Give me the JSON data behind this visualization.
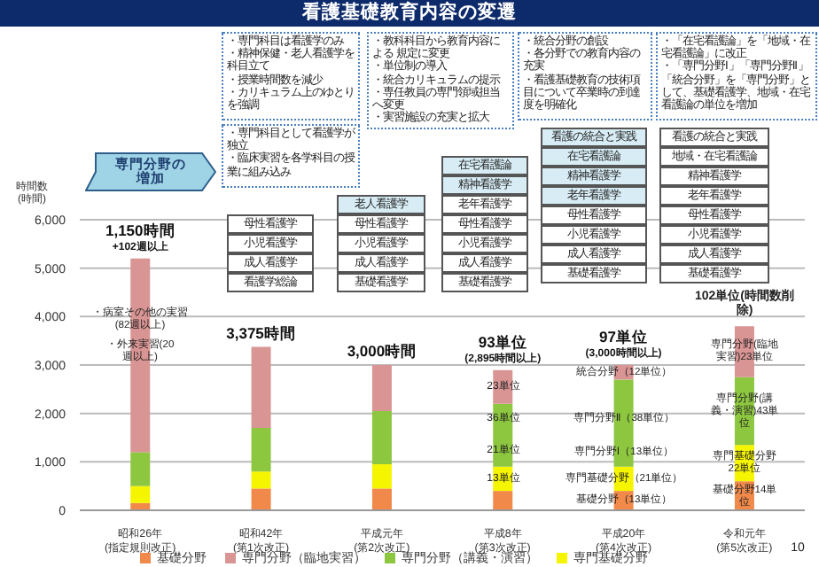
{
  "chart_data": {
    "type": "bar",
    "title": "看護基礎教育内容の変遷",
    "ylabel": "時間数(時間)",
    "categories": [
      "昭和26年\n(指定規則改正)",
      "昭和42年\n(第1次改正)",
      "平成元年\n(第2次改正)",
      "平成8年\n(第3次改正)",
      "平成20年\n(第4次改正)",
      "令和元年\n(第5次改正)"
    ],
    "stacked": true,
    "ylim": [
      0,
      6000
    ],
    "yticks": [
      {
        "value": 0,
        "label": "0"
      },
      {
        "value": 1000,
        "label": "1,000"
      },
      {
        "value": 2000,
        "label": "2,000"
      },
      {
        "value": 3000,
        "label": "3,000"
      },
      {
        "value": 4000,
        "label": "4,000"
      },
      {
        "value": 5000,
        "label": "5,000"
      },
      {
        "value": 6000,
        "label": "6,000"
      }
    ],
    "grid": "y",
    "legend": "bottom",
    "series": [
      {
        "name": "基礎分野",
        "color": "#f0894a",
        "values": [
          150,
          450,
          450,
          400,
          400,
          600
        ]
      },
      {
        "name": "専門基礎分野",
        "color": "#f5f500",
        "values": [
          350,
          350,
          500,
          500,
          500,
          750
        ]
      },
      {
        "name": "専門分野（講義・演習）",
        "color": "#8dc63f",
        "values": [
          700,
          900,
          1100,
          1300,
          1800,
          1400
        ]
      },
      {
        "name": "専門分野（臨地実習）",
        "color": "#d99594",
        "values": [
          4000,
          1675,
          950,
          695,
          300,
          1050
        ]
      }
    ],
    "totals": [
      "1,150時間\n+102週以上",
      "3,375時間",
      "3,000時間",
      "93単位\n(2,895時間以上)",
      "97単位\n(3,000時間以上)",
      null
    ],
    "annotations": [
      "専門分野の増加",
      "・専門科目は看護学のみ",
      "・精神保健・老人看護学を科目立て",
      "・授業時間数を減少",
      "・カリキュラム上のゆとりを強調",
      "・教科科目から教育内容による 規定に変更",
      "・単位制の導入",
      "・統合カリキュラムの提示",
      "・専任教員の専門領域担当へ変更",
      "・実習施設の充実と拡大",
      "・統合分野の創設",
      "・各分野での教育内容の充実",
      "・看護基礎教育の技術項目について卒業時の到達度を明確化",
      "・「在宅看護論」を「地域・在宅看護論」に改正",
      "・「専門分野Ⅰ」「専門分野Ⅱ」「統合分野」を「専門分野」として、基礎看護学、地域・在宅看護論の単位を増加",
      "・専門科目として看護学が独立",
      "・臨床実習を各学科目の授業に組み込み",
      "母性看護学",
      "小児看護学",
      "成人看護学",
      "看護学総論",
      "老人看護学",
      "母性看護学",
      "小児看護学",
      "成人看護学",
      "基礎看護学",
      "在宅看護論",
      "精神看護学",
      "老年看護学",
      "母性看護学",
      "小児看護学",
      "成人看護学",
      "基礎看護学",
      "看護の統合と実践",
      "在宅看護論",
      "精神看護学",
      "老年看護学",
      "母性看護学",
      "小児看護学",
      "成人看護学",
      "基礎看護学",
      "看護の統合と実践",
      "地域・在宅看護論",
      "精神看護学",
      "老年看護学",
      "母性看護学",
      "小児看護学",
      "成人看護学",
      "基礎看護学",
      "10",
      "102単位(時間数削除)",
      "・病室その他の実習(82週以上)",
      "・外来実習(20週以上)",
      "13単位",
      "21単位",
      "36単位",
      "23単位",
      "基礎分野（13単位）",
      "専門基礎分野（21単位）",
      "専門分野Ⅰ（13単位）",
      "専門分野Ⅱ（38単位）",
      "統合分野（12単位）",
      "基礎分野14単位",
      "専門基礎分野22単位",
      "専門分野(講義・演習)43単位",
      "専門分野(臨地実習)23単位"
    ]
  }
}
